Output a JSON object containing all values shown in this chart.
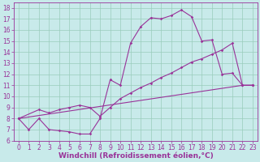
{
  "xlabel": "Windchill (Refroidissement éolien,°C)",
  "xlim": [
    -0.5,
    23.5
  ],
  "ylim": [
    6,
    18.5
  ],
  "xticks": [
    0,
    1,
    2,
    3,
    4,
    5,
    6,
    7,
    8,
    9,
    10,
    11,
    12,
    13,
    14,
    15,
    16,
    17,
    18,
    19,
    20,
    21,
    22,
    23
  ],
  "yticks": [
    6,
    7,
    8,
    9,
    10,
    11,
    12,
    13,
    14,
    15,
    16,
    17,
    18
  ],
  "background_color": "#c8eaea",
  "line_color": "#993399",
  "grid_color": "#99ccbb",
  "series1_x": [
    0,
    1,
    2,
    3,
    4,
    5,
    6,
    7,
    8,
    9,
    10,
    11,
    12,
    13,
    14,
    15,
    16,
    17,
    18,
    19,
    20,
    21,
    22,
    23
  ],
  "series1_y": [
    8,
    7,
    8,
    7,
    6.9,
    6.8,
    6.6,
    6.6,
    8,
    11.5,
    11,
    14.8,
    16.3,
    17.1,
    17.0,
    17.3,
    17.8,
    17.2,
    15.0,
    15.1,
    12.0,
    12.1,
    11.0,
    11.0
  ],
  "series2_x": [
    0,
    2,
    3,
    4,
    5,
    6,
    7,
    8,
    9,
    10,
    11,
    12,
    13,
    14,
    15,
    16,
    17,
    18,
    19,
    20,
    21,
    22,
    23
  ],
  "series2_y": [
    8,
    8.8,
    8.5,
    8.8,
    9.0,
    9.2,
    9.0,
    8.2,
    9.0,
    9.8,
    10.3,
    10.8,
    11.2,
    11.7,
    12.1,
    12.6,
    13.1,
    13.4,
    13.8,
    14.2,
    14.8,
    11.0,
    11.0
  ],
  "series3_x": [
    0,
    22,
    23
  ],
  "series3_y": [
    8,
    11.0,
    11.0
  ],
  "font_size": 6.5,
  "tick_fontsize": 5.5,
  "markersize": 1.8,
  "linewidth": 0.8
}
